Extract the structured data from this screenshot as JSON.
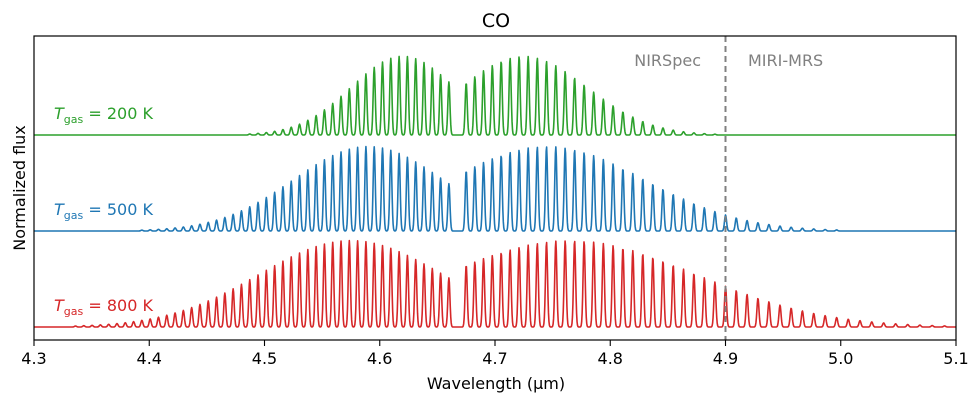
{
  "chart_data": {
    "type": "line",
    "title": "CO",
    "xlabel": "Wavelength (μm)",
    "ylabel": "Normalized flux",
    "xlim": [
      4.3,
      5.1
    ],
    "xticks": [
      "4.3",
      "4.4",
      "4.5",
      "4.6",
      "4.7",
      "4.8",
      "4.9",
      "5.0",
      "5.1"
    ],
    "grid": false,
    "divider": {
      "x": 4.9,
      "style": "dashed",
      "color": "#808080"
    },
    "regions": [
      {
        "text": "NIRSpec",
        "side": "left"
      },
      {
        "text": "MIRI-MRS",
        "side": "right"
      }
    ],
    "series": [
      {
        "name_math": "T_gas",
        "name_var": "T",
        "name_sub": "gas",
        "name_value": " = 200 K",
        "color": "#2ca02c",
        "offset": 2,
        "r_branch_peak": 4.62,
        "r_branch_width": 0.045,
        "p_branch_peak": 4.725,
        "p_branch_width": 0.055,
        "peak_height": 0.82
      },
      {
        "name_math": "T_gas",
        "name_var": "T",
        "name_sub": "gas",
        "name_value": " = 500 K",
        "color": "#1f77b4",
        "offset": 1,
        "r_branch_peak": 4.59,
        "r_branch_width": 0.065,
        "p_branch_peak": 4.745,
        "p_branch_width": 0.085,
        "peak_height": 0.88
      },
      {
        "name_math": "T_gas",
        "name_var": "T",
        "name_sub": "gas",
        "name_value": " = 800 K",
        "color": "#d62728",
        "offset": 0,
        "r_branch_peak": 4.575,
        "r_branch_width": 0.08,
        "p_branch_peak": 4.765,
        "p_branch_width": 0.11,
        "peak_height": 0.9
      }
    ]
  }
}
